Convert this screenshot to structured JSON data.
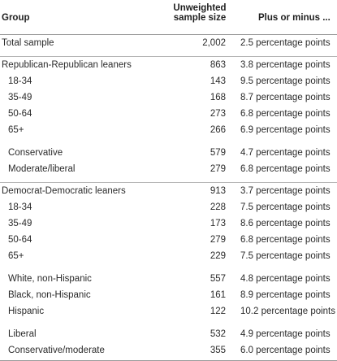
{
  "headers": {
    "group": "Group",
    "sample_size": "Unweighted sample size",
    "moe": "Plus or minus ..."
  },
  "rows": [
    {
      "label": "Total sample",
      "n": "2,002",
      "moe": "2.5 percentage points"
    },
    {
      "label": "Republican-Republican leaners",
      "n": "863",
      "moe": "3.8 percentage points"
    },
    {
      "label": "18-34",
      "n": "143",
      "moe": "9.5 percentage points"
    },
    {
      "label": "35-49",
      "n": "168",
      "moe": "8.7 percentage points"
    },
    {
      "label": "50-64",
      "n": "273",
      "moe": "6.8 percentage points"
    },
    {
      "label": "65+",
      "n": "266",
      "moe": "6.9 percentage points"
    },
    {
      "label": "Conservative",
      "n": "579",
      "moe": "4.7 percentage points"
    },
    {
      "label": "Moderate/liberal",
      "n": "279",
      "moe": "6.8 percentage points"
    },
    {
      "label": "Democrat-Democratic leaners",
      "n": "913",
      "moe": "3.7 percentage points"
    },
    {
      "label": "18-34",
      "n": "228",
      "moe": "7.5 percentage points"
    },
    {
      "label": "35-49",
      "n": "173",
      "moe": "8.6 percentage points"
    },
    {
      "label": "50-64",
      "n": "279",
      "moe": "6.8 percentage points"
    },
    {
      "label": "65+",
      "n": "229",
      "moe": "7.5 percentage points"
    },
    {
      "label": "White, non-Hispanic",
      "n": "557",
      "moe": "4.8 percentage points"
    },
    {
      "label": "Black, non-Hispanic",
      "n": "161",
      "moe": "8.9 percentage points"
    },
    {
      "label": "Hispanic",
      "n": "122",
      "moe": "10.2 percentage points"
    },
    {
      "label": "Liberal",
      "n": "532",
      "moe": "4.9 percentage points"
    },
    {
      "label": "Conservative/moderate",
      "n": "355",
      "moe": "6.0 percentage points"
    }
  ]
}
